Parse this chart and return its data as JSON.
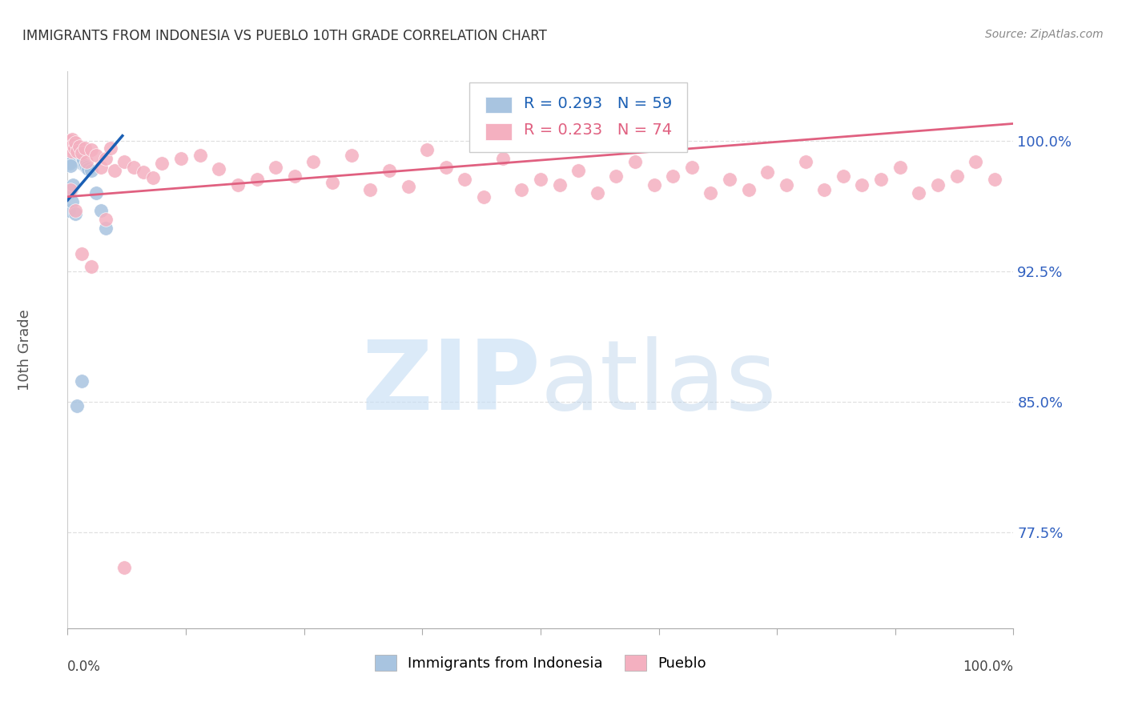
{
  "title": "IMMIGRANTS FROM INDONESIA VS PUEBLO 10TH GRADE CORRELATION CHART",
  "source": "Source: ZipAtlas.com",
  "ylabel": "10th Grade",
  "ytick_labels": [
    "77.5%",
    "85.0%",
    "92.5%",
    "100.0%"
  ],
  "ytick_values": [
    0.775,
    0.85,
    0.925,
    1.0
  ],
  "xlim": [
    0.0,
    1.0
  ],
  "ylim": [
    0.72,
    1.04
  ],
  "legend_text_blue": "R = 0.293   N = 59",
  "legend_text_pink": "R = 0.233   N = 74",
  "legend_label_blue": "Immigrants from Indonesia",
  "legend_label_pink": "Pueblo",
  "blue_scatter_x": [
    0.001,
    0.001,
    0.001,
    0.001,
    0.001,
    0.001,
    0.001,
    0.001,
    0.001,
    0.001,
    0.002,
    0.002,
    0.002,
    0.002,
    0.002,
    0.002,
    0.002,
    0.003,
    0.003,
    0.003,
    0.003,
    0.003,
    0.004,
    0.004,
    0.004,
    0.005,
    0.005,
    0.005,
    0.006,
    0.006,
    0.007,
    0.007,
    0.008,
    0.008,
    0.009,
    0.01,
    0.01,
    0.011,
    0.012,
    0.013,
    0.015,
    0.018,
    0.02,
    0.022,
    0.025,
    0.03,
    0.035,
    0.04,
    0.001,
    0.001,
    0.001,
    0.002,
    0.003,
    0.004,
    0.005,
    0.006,
    0.008,
    0.01,
    0.015
  ],
  "blue_scatter_y": [
    1.0,
    0.999,
    0.998,
    0.997,
    0.996,
    0.995,
    0.994,
    0.993,
    0.991,
    0.99,
    0.999,
    0.998,
    0.996,
    0.994,
    0.993,
    0.991,
    0.989,
    0.998,
    0.996,
    0.994,
    0.992,
    0.99,
    0.997,
    0.995,
    0.993,
    0.996,
    0.994,
    0.992,
    0.995,
    0.993,
    0.994,
    0.992,
    0.993,
    0.991,
    0.992,
    0.991,
    0.989,
    0.99,
    0.989,
    0.988,
    0.987,
    0.986,
    0.985,
    0.984,
    0.983,
    0.97,
    0.96,
    0.95,
    0.97,
    0.96,
    0.988,
    0.987,
    0.986,
    0.972,
    0.965,
    0.975,
    0.958,
    0.848,
    0.862
  ],
  "pink_scatter_x": [
    0.001,
    0.002,
    0.003,
    0.004,
    0.005,
    0.006,
    0.007,
    0.008,
    0.01,
    0.012,
    0.015,
    0.018,
    0.02,
    0.025,
    0.03,
    0.035,
    0.04,
    0.045,
    0.05,
    0.06,
    0.07,
    0.08,
    0.09,
    0.1,
    0.12,
    0.14,
    0.16,
    0.18,
    0.2,
    0.22,
    0.24,
    0.26,
    0.28,
    0.3,
    0.32,
    0.34,
    0.36,
    0.38,
    0.4,
    0.42,
    0.44,
    0.46,
    0.48,
    0.5,
    0.52,
    0.54,
    0.56,
    0.58,
    0.6,
    0.62,
    0.64,
    0.66,
    0.68,
    0.7,
    0.72,
    0.74,
    0.76,
    0.78,
    0.8,
    0.82,
    0.84,
    0.86,
    0.88,
    0.9,
    0.92,
    0.94,
    0.96,
    0.98,
    0.003,
    0.008,
    0.015,
    0.025,
    0.04,
    0.06
  ],
  "pink_scatter_y": [
    0.998,
    0.996,
    1.0,
    0.994,
    1.001,
    0.998,
    0.996,
    0.999,
    0.994,
    0.997,
    0.993,
    0.996,
    0.988,
    0.995,
    0.992,
    0.985,
    0.99,
    0.996,
    0.983,
    0.988,
    0.985,
    0.982,
    0.979,
    0.987,
    0.99,
    0.992,
    0.984,
    0.975,
    0.978,
    0.985,
    0.98,
    0.988,
    0.976,
    0.992,
    0.972,
    0.983,
    0.974,
    0.995,
    0.985,
    0.978,
    0.968,
    0.99,
    0.972,
    0.978,
    0.975,
    0.983,
    0.97,
    0.98,
    0.988,
    0.975,
    0.98,
    0.985,
    0.97,
    0.978,
    0.972,
    0.982,
    0.975,
    0.988,
    0.972,
    0.98,
    0.975,
    0.978,
    0.985,
    0.97,
    0.975,
    0.98,
    0.988,
    0.978,
    0.972,
    0.96,
    0.935,
    0.928,
    0.955,
    0.755
  ],
  "blue_line_x": [
    0.0,
    0.058
  ],
  "blue_line_y": [
    0.966,
    1.003
  ],
  "pink_line_x": [
    0.0,
    1.0
  ],
  "pink_line_y": [
    0.968,
    1.01
  ],
  "blue_scatter_color": "#a8c4e0",
  "blue_line_color": "#1a5fb4",
  "pink_scatter_color": "#f4b0c0",
  "pink_line_color": "#e06080",
  "grid_color": "#e0e0e0",
  "title_color": "#333333",
  "ylabel_color": "#555555",
  "ytick_color": "#3060c0",
  "source_color": "#888888",
  "bg_color": "#ffffff"
}
